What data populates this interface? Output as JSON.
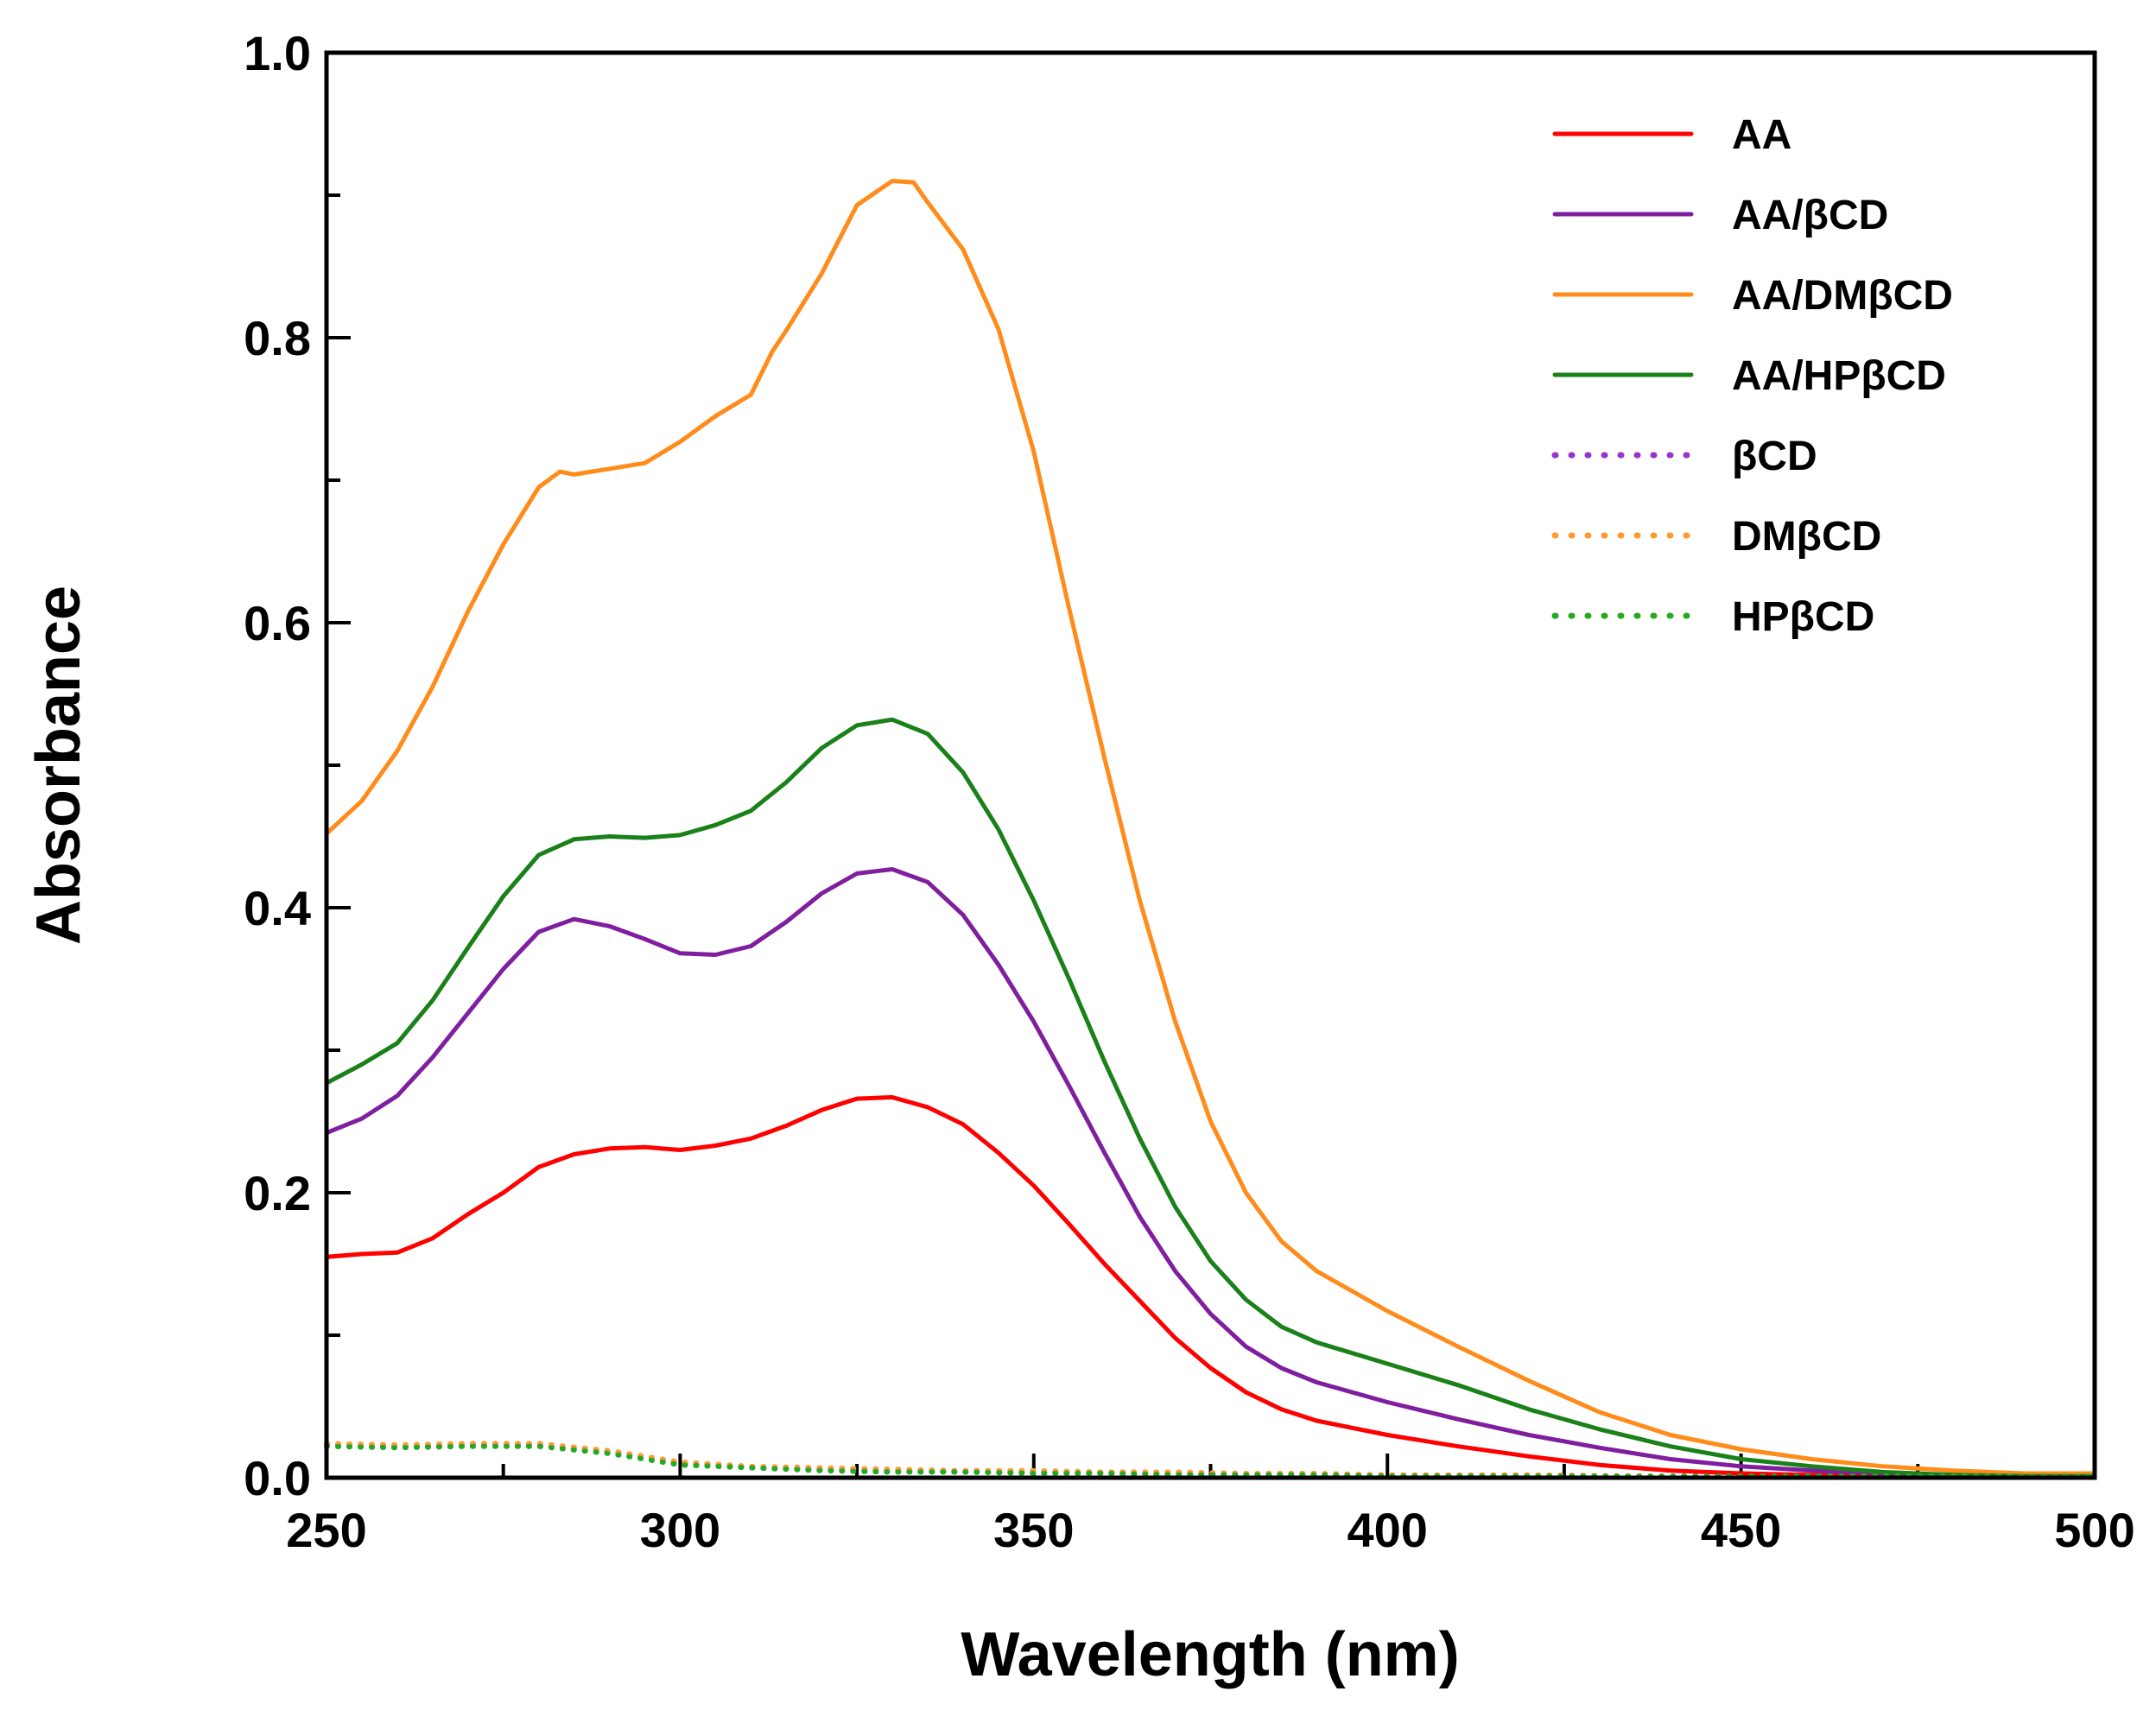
{
  "chart_data": {
    "type": "line",
    "title": "",
    "xlabel": "Wavelength (nm)",
    "ylabel": "Absorbance",
    "xlim": [
      250,
      500
    ],
    "ylim": [
      0.0,
      1.0
    ],
    "xticks": [
      "250",
      "300",
      "350",
      "400",
      "450",
      "500"
    ],
    "xtick_values": [
      250,
      300,
      350,
      400,
      450,
      500
    ],
    "yticks": [
      "0.0",
      "0.2",
      "0.4",
      "0.6",
      "0.8",
      "1.0"
    ],
    "ytick_values": [
      0.0,
      0.2,
      0.4,
      0.6,
      0.8,
      1.0
    ],
    "grid": false,
    "legend_position": "top-right",
    "series": [
      {
        "name": "AA",
        "color": "#ff0000",
        "style": "solid",
        "points": [
          [
            250,
            0.155
          ],
          [
            255,
            0.157
          ],
          [
            260,
            0.158
          ],
          [
            265,
            0.168
          ],
          [
            270,
            0.185
          ],
          [
            275,
            0.2
          ],
          [
            280,
            0.218
          ],
          [
            285,
            0.227
          ],
          [
            290,
            0.231
          ],
          [
            295,
            0.232
          ],
          [
            300,
            0.23
          ],
          [
            305,
            0.233
          ],
          [
            310,
            0.238
          ],
          [
            315,
            0.247
          ],
          [
            320,
            0.258
          ],
          [
            325,
            0.266
          ],
          [
            330,
            0.267
          ],
          [
            335,
            0.26
          ],
          [
            340,
            0.248
          ],
          [
            345,
            0.228
          ],
          [
            350,
            0.205
          ],
          [
            355,
            0.178
          ],
          [
            360,
            0.15
          ],
          [
            365,
            0.124
          ],
          [
            370,
            0.098
          ],
          [
            375,
            0.077
          ],
          [
            380,
            0.06
          ],
          [
            385,
            0.048
          ],
          [
            390,
            0.04
          ],
          [
            400,
            0.03
          ],
          [
            410,
            0.022
          ],
          [
            420,
            0.015
          ],
          [
            430,
            0.009
          ],
          [
            440,
            0.005
          ],
          [
            450,
            0.003
          ],
          [
            460,
            0.002
          ],
          [
            470,
            0.001
          ],
          [
            480,
            0.001
          ],
          [
            490,
            0.001
          ],
          [
            500,
            0.001
          ]
        ]
      },
      {
        "name": "AA/βCD",
        "color": "#7f1f9f",
        "style": "solid",
        "points": [
          [
            250,
            0.242
          ],
          [
            255,
            0.252
          ],
          [
            260,
            0.268
          ],
          [
            265,
            0.295
          ],
          [
            270,
            0.326
          ],
          [
            275,
            0.357
          ],
          [
            280,
            0.383
          ],
          [
            285,
            0.392
          ],
          [
            290,
            0.387
          ],
          [
            295,
            0.378
          ],
          [
            300,
            0.368
          ],
          [
            305,
            0.367
          ],
          [
            310,
            0.373
          ],
          [
            315,
            0.39
          ],
          [
            320,
            0.41
          ],
          [
            325,
            0.424
          ],
          [
            330,
            0.427
          ],
          [
            335,
            0.418
          ],
          [
            340,
            0.395
          ],
          [
            345,
            0.36
          ],
          [
            350,
            0.32
          ],
          [
            355,
            0.275
          ],
          [
            360,
            0.228
          ],
          [
            365,
            0.183
          ],
          [
            370,
            0.145
          ],
          [
            375,
            0.115
          ],
          [
            380,
            0.092
          ],
          [
            385,
            0.077
          ],
          [
            390,
            0.067
          ],
          [
            400,
            0.053
          ],
          [
            410,
            0.041
          ],
          [
            420,
            0.03
          ],
          [
            430,
            0.021
          ],
          [
            440,
            0.013
          ],
          [
            450,
            0.008
          ],
          [
            460,
            0.005
          ],
          [
            470,
            0.003
          ],
          [
            480,
            0.002
          ],
          [
            490,
            0.001
          ],
          [
            500,
            0.001
          ]
        ]
      },
      {
        "name": "AA/DMβCD",
        "color": "#ff8c1a",
        "style": "solid",
        "points": [
          [
            250,
            0.452
          ],
          [
            255,
            0.475
          ],
          [
            260,
            0.51
          ],
          [
            265,
            0.555
          ],
          [
            270,
            0.608
          ],
          [
            275,
            0.655
          ],
          [
            280,
            0.695
          ],
          [
            283,
            0.706
          ],
          [
            285,
            0.704
          ],
          [
            290,
            0.708
          ],
          [
            295,
            0.712
          ],
          [
            300,
            0.727
          ],
          [
            305,
            0.745
          ],
          [
            310,
            0.76
          ],
          [
            313,
            0.79
          ],
          [
            315,
            0.805
          ],
          [
            320,
            0.845
          ],
          [
            325,
            0.893
          ],
          [
            330,
            0.91
          ],
          [
            333,
            0.909
          ],
          [
            335,
            0.895
          ],
          [
            340,
            0.862
          ],
          [
            345,
            0.806
          ],
          [
            350,
            0.72
          ],
          [
            355,
            0.61
          ],
          [
            360,
            0.505
          ],
          [
            365,
            0.405
          ],
          [
            370,
            0.32
          ],
          [
            375,
            0.25
          ],
          [
            380,
            0.2
          ],
          [
            385,
            0.166
          ],
          [
            390,
            0.145
          ],
          [
            400,
            0.117
          ],
          [
            410,
            0.092
          ],
          [
            420,
            0.068
          ],
          [
            430,
            0.046
          ],
          [
            440,
            0.03
          ],
          [
            450,
            0.02
          ],
          [
            460,
            0.013
          ],
          [
            470,
            0.008
          ],
          [
            480,
            0.005
          ],
          [
            490,
            0.003
          ],
          [
            500,
            0.003
          ]
        ]
      },
      {
        "name": "AA/HPβCD",
        "color": "#1a801a",
        "style": "solid",
        "points": [
          [
            250,
            0.277
          ],
          [
            255,
            0.29
          ],
          [
            260,
            0.305
          ],
          [
            265,
            0.335
          ],
          [
            270,
            0.372
          ],
          [
            275,
            0.408
          ],
          [
            280,
            0.437
          ],
          [
            285,
            0.448
          ],
          [
            290,
            0.45
          ],
          [
            295,
            0.449
          ],
          [
            300,
            0.451
          ],
          [
            305,
            0.458
          ],
          [
            310,
            0.468
          ],
          [
            315,
            0.488
          ],
          [
            320,
            0.512
          ],
          [
            325,
            0.528
          ],
          [
            330,
            0.532
          ],
          [
            335,
            0.522
          ],
          [
            340,
            0.495
          ],
          [
            345,
            0.455
          ],
          [
            350,
            0.405
          ],
          [
            355,
            0.35
          ],
          [
            360,
            0.292
          ],
          [
            365,
            0.238
          ],
          [
            370,
            0.19
          ],
          [
            375,
            0.152
          ],
          [
            380,
            0.125
          ],
          [
            385,
            0.106
          ],
          [
            390,
            0.095
          ],
          [
            400,
            0.08
          ],
          [
            410,
            0.065
          ],
          [
            420,
            0.048
          ],
          [
            430,
            0.034
          ],
          [
            440,
            0.022
          ],
          [
            450,
            0.013
          ],
          [
            460,
            0.008
          ],
          [
            470,
            0.004
          ],
          [
            480,
            0.002
          ],
          [
            490,
            0.001
          ],
          [
            500,
            0.001
          ]
        ]
      },
      {
        "name": "βCD",
        "color": "#9933cc",
        "style": "dotted",
        "points": [
          [
            250,
            0.023
          ],
          [
            260,
            0.022
          ],
          [
            270,
            0.023
          ],
          [
            280,
            0.023
          ],
          [
            290,
            0.018
          ],
          [
            300,
            0.01
          ],
          [
            310,
            0.007
          ],
          [
            320,
            0.006
          ],
          [
            330,
            0.005
          ],
          [
            340,
            0.004
          ],
          [
            350,
            0.004
          ],
          [
            360,
            0.003
          ],
          [
            370,
            0.003
          ],
          [
            380,
            0.002
          ],
          [
            390,
            0.002
          ],
          [
            400,
            0.001
          ],
          [
            420,
            0.001
          ],
          [
            440,
            0.001
          ],
          [
            460,
            0.001
          ],
          [
            480,
            0.001
          ],
          [
            500,
            0.001
          ]
        ]
      },
      {
        "name": "DMβCD",
        "color": "#ff9933",
        "style": "dotted",
        "points": [
          [
            250,
            0.024
          ],
          [
            260,
            0.023
          ],
          [
            270,
            0.024
          ],
          [
            280,
            0.024
          ],
          [
            290,
            0.019
          ],
          [
            300,
            0.011
          ],
          [
            310,
            0.008
          ],
          [
            320,
            0.007
          ],
          [
            330,
            0.006
          ],
          [
            340,
            0.005
          ],
          [
            350,
            0.005
          ],
          [
            360,
            0.004
          ],
          [
            370,
            0.004
          ],
          [
            380,
            0.003
          ],
          [
            390,
            0.003
          ],
          [
            400,
            0.002
          ],
          [
            420,
            0.002
          ],
          [
            440,
            0.001
          ],
          [
            460,
            0.001
          ],
          [
            480,
            0.001
          ],
          [
            500,
            0.001
          ]
        ]
      },
      {
        "name": "HPβCD",
        "color": "#22aa22",
        "style": "dotted",
        "points": [
          [
            250,
            0.022
          ],
          [
            260,
            0.021
          ],
          [
            270,
            0.022
          ],
          [
            280,
            0.022
          ],
          [
            290,
            0.017
          ],
          [
            300,
            0.009
          ],
          [
            310,
            0.007
          ],
          [
            320,
            0.005
          ],
          [
            330,
            0.004
          ],
          [
            340,
            0.004
          ],
          [
            350,
            0.003
          ],
          [
            360,
            0.003
          ],
          [
            370,
            0.002
          ],
          [
            380,
            0.002
          ],
          [
            390,
            0.002
          ],
          [
            400,
            0.001
          ],
          [
            420,
            0.001
          ],
          [
            440,
            0.001
          ],
          [
            460,
            0.001
          ],
          [
            480,
            0.001
          ],
          [
            500,
            0.001
          ]
        ]
      }
    ]
  }
}
